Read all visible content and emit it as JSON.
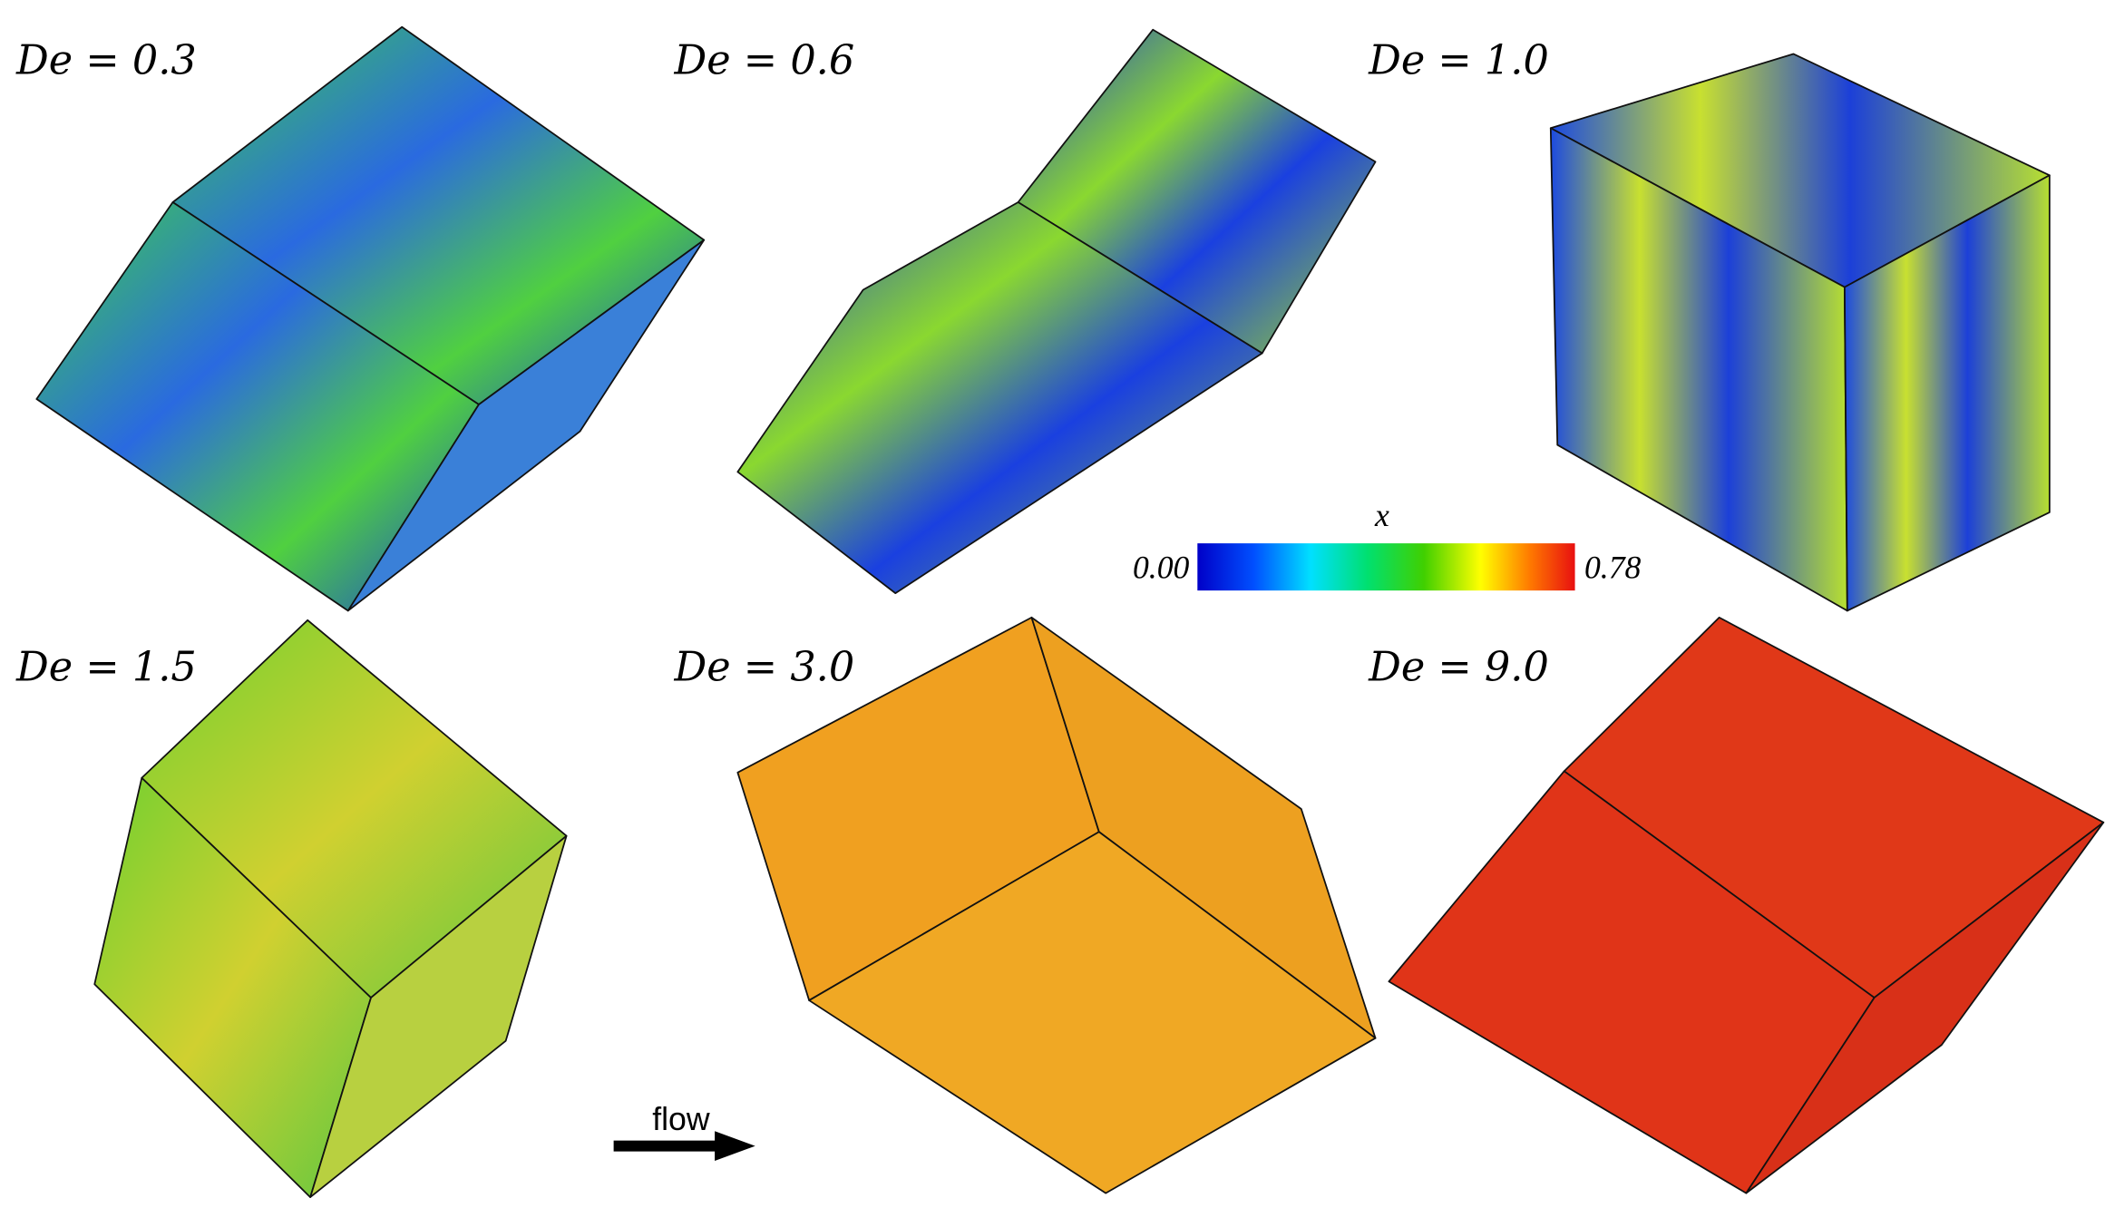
{
  "panels": [
    {
      "label": "De = 0.3"
    },
    {
      "label": "De = 0.6"
    },
    {
      "label": "De = 1.0"
    },
    {
      "label": "De = 1.5"
    },
    {
      "label": "De = 3.0"
    },
    {
      "label": "De = 9.0"
    }
  ],
  "colorbar": {
    "title": "x",
    "min_label": "0.00",
    "max_label": "0.78"
  },
  "arrow": {
    "label": "flow"
  }
}
